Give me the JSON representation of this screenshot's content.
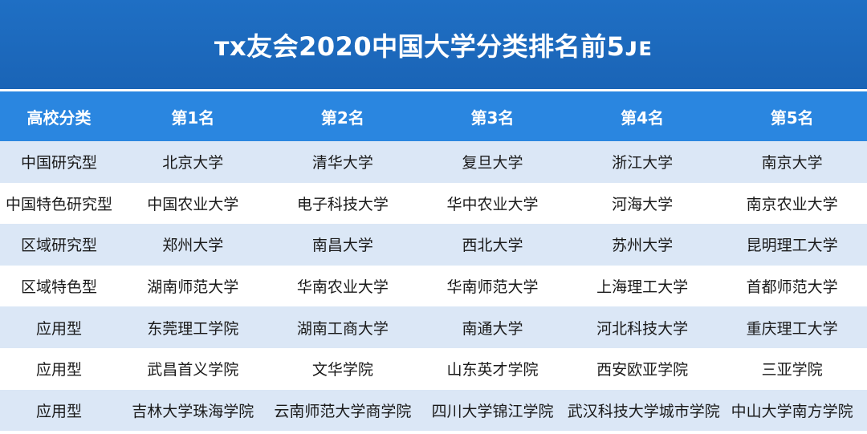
{
  "title": "ᴛx友会2020中国大学分类排名前5ᴊᴇ",
  "columns": [
    "高校分类",
    "第1名",
    "第2名",
    "第3名",
    "第4名",
    "第5名"
  ],
  "rows": [
    [
      "中国研究型",
      "北京大学",
      "清华大学",
      "复旦大学",
      "浙江大学",
      "南京大学"
    ],
    [
      "中国特色研究型",
      "中国农业大学",
      "电子科技大学",
      "华中农业大学",
      "河海大学",
      "南京农业大学"
    ],
    [
      "区域研究型",
      "郑州大学",
      "南昌大学",
      "西北大学",
      "苏州大学",
      "昆明理工大学"
    ],
    [
      "区域特色型",
      "湖南师范大学",
      "华南农业大学",
      "华南师范大学",
      "上海理工大学",
      "首都师范大学"
    ],
    [
      "应用型",
      "东莞理工学院",
      "湖南工商大学",
      "南通大学",
      "河北科技大学",
      "重庆理工大学"
    ],
    [
      "应用型",
      "武昌首义学院",
      "文华学院",
      "山东英才学院",
      "西安欧亚学院",
      "三亚学院"
    ],
    [
      "应用型",
      "吉林大学珠海学院",
      "云南师范大学商学院",
      "四川大学锦江学院",
      "武汉科技大学城市学院",
      "中山大学南方学院"
    ]
  ],
  "colors": {
    "title_bg": "#1a64b6",
    "header_bg": "#2a86e0",
    "row_alt_bg": "#dbe7f6",
    "row_bg": "#ffffff"
  }
}
